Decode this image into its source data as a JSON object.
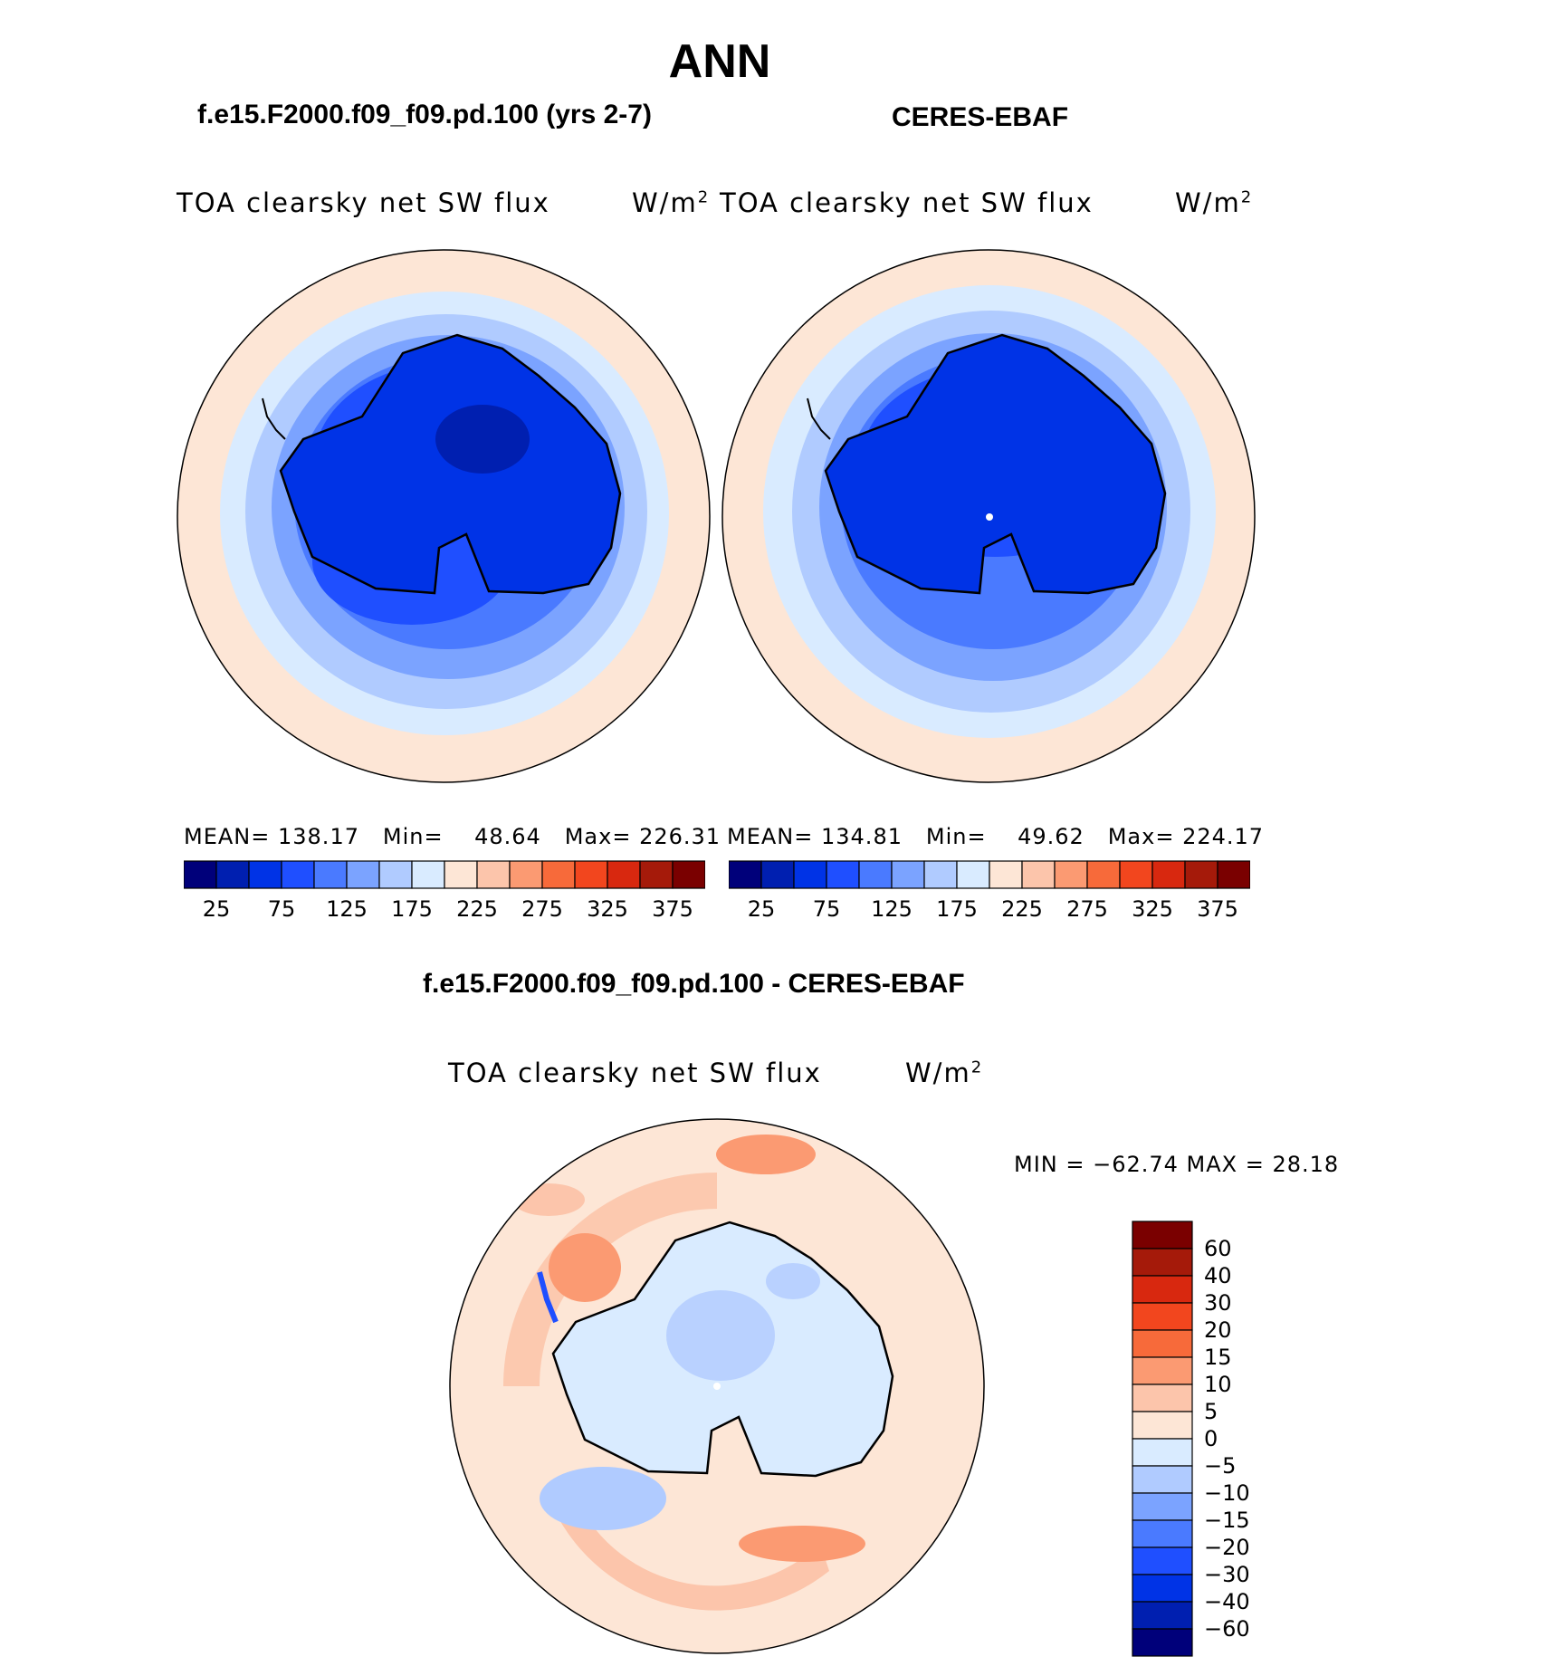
{
  "header": {
    "season": "ANN",
    "test_case": "f.e15.F2000.f09_f09.pd.100 (yrs 2-7)",
    "obs_case": "CERES-EBAF",
    "diff_title": "f.e15.F2000.f09_f09.pd.100 - CERES-EBAF"
  },
  "panels": [
    {
      "variable": "TOA clearsky net SW flux",
      "units": "W/m",
      "units_sup": "2",
      "stats": {
        "mean_label": "MEAN=",
        "mean": "138.17",
        "min_label": "Min=",
        "min": "48.64",
        "max_label": "Max=",
        "max": "226.31"
      },
      "map_icon": "south-polar-stereographic-map"
    },
    {
      "variable": "TOA clearsky net SW flux",
      "units": "W/m",
      "units_sup": "2",
      "stats": {
        "mean_label": "MEAN=",
        "mean": "134.81",
        "min_label": "Min=",
        "min": "49.62",
        "max_label": "Max=",
        "max": "224.17"
      },
      "map_icon": "south-polar-stereographic-map"
    }
  ],
  "diff_panel": {
    "variable": "TOA clearsky net SW flux",
    "units": "W/m",
    "units_sup": "2",
    "minmax": "MIN = −62.74 MAX =   28.18"
  },
  "colorbar": {
    "colors": [
      "#00007a",
      "#001fb0",
      "#0033e6",
      "#1f4fff",
      "#4a7aff",
      "#7ba3ff",
      "#b0cbff",
      "#d9ebff",
      "#fde6d6",
      "#fcc5ab",
      "#fb9a72",
      "#f76a3a",
      "#f2461e",
      "#d8280f",
      "#a51a0a",
      "#7a0000"
    ],
    "tick_labels": [
      "25",
      "75",
      "125",
      "175",
      "225",
      "275",
      "325",
      "375"
    ]
  },
  "diff_colorbar": {
    "colors": [
      "#00007a",
      "#001fb0",
      "#0033e6",
      "#1f4fff",
      "#4a7aff",
      "#7ba3ff",
      "#b0cbff",
      "#d9ebff",
      "#fde6d6",
      "#fcc5ab",
      "#fb9a72",
      "#f76a3a",
      "#f2461e",
      "#d8280f",
      "#a51a0a",
      "#7a0000"
    ],
    "tick_labels": [
      "60",
      "40",
      "30",
      "20",
      "15",
      "10",
      "5",
      "0",
      "−5",
      "−10",
      "−15",
      "−20",
      "−30",
      "−40",
      "−60"
    ]
  }
}
